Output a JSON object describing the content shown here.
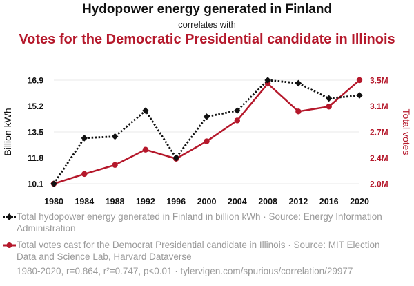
{
  "header": {
    "title": "Hydopower energy generated in Finland",
    "connector": "correlates with",
    "subtitle": "Votes for the Democratic Presidential candidate in Illinois"
  },
  "chart_data": {
    "type": "line",
    "x": [
      1980,
      1984,
      1988,
      1992,
      1996,
      2000,
      2004,
      2008,
      2012,
      2016,
      2020
    ],
    "xticks": [
      "1980",
      "1984",
      "1988",
      "1992",
      "1996",
      "2000",
      "2004",
      "2008",
      "2012",
      "2016",
      "2020"
    ],
    "xlim": [
      1980,
      2020
    ],
    "series": [
      {
        "name": "Total hydopower energy generated in Finland in billion kWh · Source: Energy Information Administration",
        "axis": "left",
        "color": "#111111",
        "style": "dotted",
        "marker": "diamond",
        "values": [
          10.1,
          13.1,
          13.2,
          14.9,
          11.8,
          14.5,
          14.9,
          16.9,
          16.7,
          15.7,
          15.9
        ]
      },
      {
        "name": "Total votes cast for the Democrat Presidential candidate in Illinois · Source: MIT Election Data and Science Lab, Harvard Dataverse",
        "axis": "right",
        "color": "#b5182b",
        "style": "solid",
        "marker": "circle",
        "values": [
          1.98,
          2.12,
          2.25,
          2.47,
          2.34,
          2.59,
          2.89,
          3.42,
          3.02,
          3.09,
          3.47
        ]
      }
    ],
    "yleft": {
      "label": "Billion kWh",
      "ticks": [
        "10.1",
        "11.8",
        "13.5",
        "15.2",
        "16.9"
      ],
      "lim": [
        10.1,
        16.9
      ]
    },
    "yright": {
      "label": "Total votes",
      "ticks": [
        "2.0M",
        "2.4M",
        "2.7M",
        "3.1M",
        "3.5M"
      ],
      "lim": [
        1.98,
        3.47
      ]
    },
    "grid": "horizontal"
  },
  "legend": {
    "hydro": "Total hydopower energy generated in Finland in billion kWh · Source: Energy Information Administration",
    "votes": "Total votes cast for the Democrat Presidential candidate in Illinois · Source: MIT Election Data and Science Lab, Harvard Dataverse"
  },
  "footer": "1980-2020, r=0.864, r²=0.747, p<0.01 · tylervigen.com/spurious/correlation/29977",
  "colors": {
    "red": "#b5182b",
    "black": "#111111",
    "grey": "#9a9a9a"
  }
}
